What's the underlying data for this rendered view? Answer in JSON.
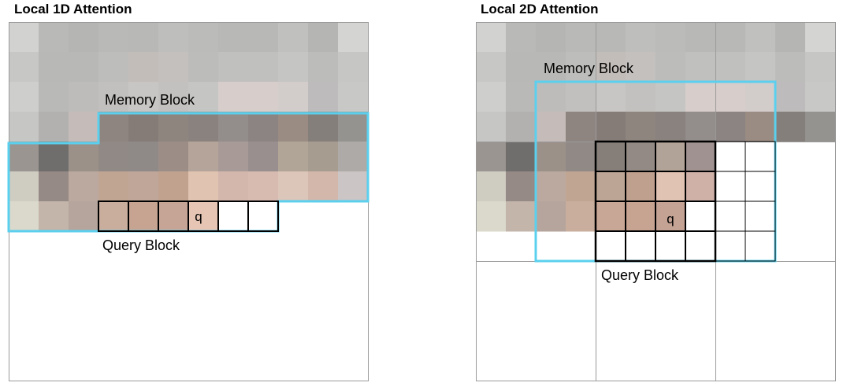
{
  "panels": {
    "left": {
      "title": "Local 1D Attention",
      "memory_label": "Memory Block",
      "query_label": "Query Block",
      "query_marker": "q"
    },
    "right": {
      "title": "Local 2D Attention",
      "memory_label": "Memory Block",
      "query_label": "Query Block",
      "query_marker": "q"
    }
  },
  "colors": {
    "memory_outline": "#5bd0ee",
    "query_outline": "#000000",
    "frame": "#9a9a9a"
  },
  "pixel_grid": [
    [
      "#d2d2d0",
      "#b9b9b7",
      "#b5b5b3",
      "#b9b9b7",
      "#b8b8b6",
      "#bebebc",
      "#bbbbb9",
      "#b8b8b6",
      "#b8b8b6",
      "#c0c0be",
      "#b5b5b3",
      "#d4d4d2"
    ],
    [
      "#c7c7c5",
      "#b8b8b6",
      "#b8b8b6",
      "#bdbdbb",
      "#c3bdb9",
      "#c3c0be",
      "#bcbcba",
      "#c0c0be",
      "#c0c0be",
      "#c5c5c3",
      "#bcbcba",
      "#c6c6c4"
    ],
    [
      "#cececc",
      "#b9b9b7",
      "#bdbcba",
      "#c2c0be",
      "#c8c6c4",
      "#c3c1bf",
      "#c5c5c3",
      "#d7cdcb",
      "#d7cdcb",
      "#d2cccb",
      "#bdbbbb",
      "#c8c8c6"
    ],
    [
      "#c6c6c4",
      "#b2b1af",
      "#c5bcb9",
      "#8f8580",
      "#857c78",
      "#8f857f",
      "#8a827f",
      "#938d8b",
      "#8c8482",
      "#9a8c82",
      "#857f7b",
      "#949390"
    ],
    [
      "#9a9590",
      "#6f6e6c",
      "#9c9189",
      "#918985",
      "#8f8a88",
      "#9c8e87",
      "#b5a499",
      "#a89a96",
      "#998f8e",
      "#b0a597",
      "#a69c90",
      "#aeaaa7"
    ],
    [
      "#cfccc2",
      "#958a86",
      "#bba99f",
      "#c1a593",
      "#bfa698",
      "#c0a28f",
      "#e0c4b1",
      "#d3b7ad",
      "#d7bbb0",
      "#dcc6b9",
      "#d3b7aa",
      "#cbc5c5"
    ],
    [
      "#dad9cb",
      "#c3b5aa",
      "#b5a59c",
      "#c9ae9d",
      "#c7a392",
      "#c7a596",
      "#e7c5b5",
      "#ffffff",
      "#ffffff",
      "#ffffff",
      "#ffffff",
      "#ffffff"
    ],
    [
      "#ffffff",
      "#ffffff",
      "#ffffff",
      "#ffffff",
      "#ffffff",
      "#ffffff",
      "#ffffff",
      "#ffffff",
      "#ffffff",
      "#ffffff",
      "#ffffff",
      "#ffffff"
    ]
  ]
}
